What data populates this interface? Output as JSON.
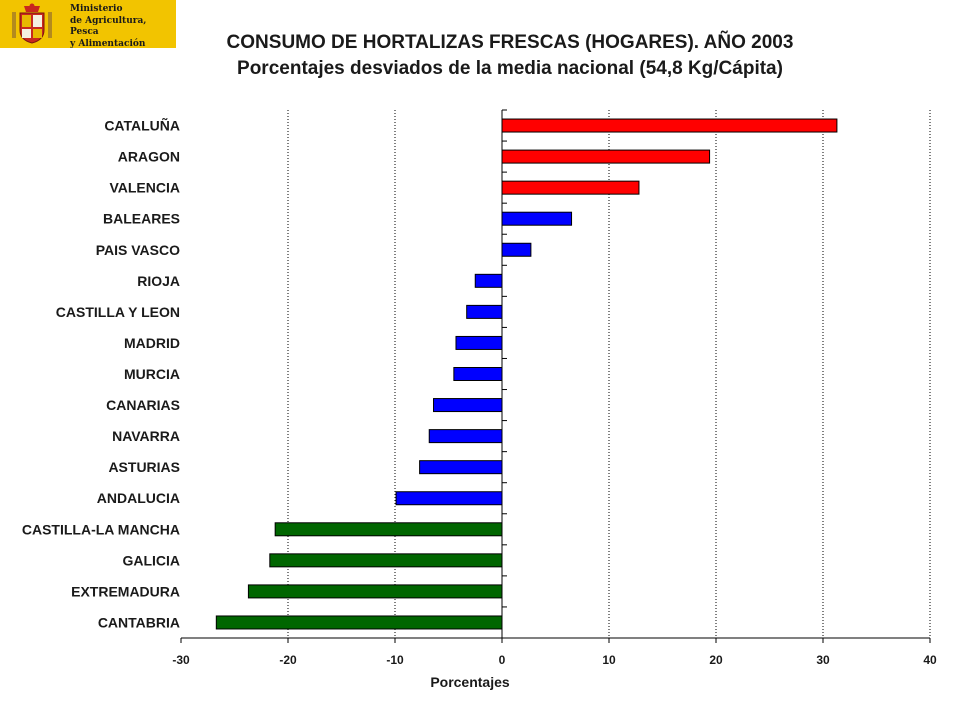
{
  "header": {
    "ministry_text": "Ministerio\nde Agricultura, Pesca\ny Alimentación",
    "logo_bg": "#f2c400"
  },
  "chart_data": {
    "type": "bar",
    "orientation": "horizontal",
    "title": "CONSUMO DE HORTALIZAS FRESCAS (HOGARES). AÑO 2003",
    "subtitle": "Porcentajes desviados de la media nacional (54,8 Kg/Cápita)",
    "xlabel": "Porcentajes",
    "ylabel": "",
    "xlim": [
      -30,
      40
    ],
    "xticks": [
      -30,
      -20,
      -10,
      0,
      10,
      20,
      30,
      40
    ],
    "grid": "vertical dotted",
    "colors": {
      "high": "#ff0000",
      "mid": "#0000ff",
      "low": "#006600"
    },
    "categories": [
      "CATALUÑA",
      "ARAGON",
      "VALENCIA",
      "BALEARES",
      "PAIS VASCO",
      "RIOJA",
      "CASTILLA Y LEON",
      "MADRID",
      "MURCIA",
      "CANARIAS",
      "NAVARRA",
      "ASTURIAS",
      "ANDALUCIA",
      "CASTILLA-LA MANCHA",
      "GALICIA",
      "EXTREMADURA",
      "CANTABRIA"
    ],
    "values": [
      31.3,
      19.4,
      12.8,
      6.5,
      2.7,
      -2.5,
      -3.3,
      -4.3,
      -4.5,
      -6.4,
      -6.8,
      -7.7,
      -9.9,
      -21.2,
      -21.7,
      -23.7,
      -26.7
    ],
    "groups": [
      "high",
      "high",
      "high",
      "mid",
      "mid",
      "mid",
      "mid",
      "mid",
      "mid",
      "mid",
      "mid",
      "mid",
      "mid",
      "low",
      "low",
      "low",
      "low"
    ]
  }
}
